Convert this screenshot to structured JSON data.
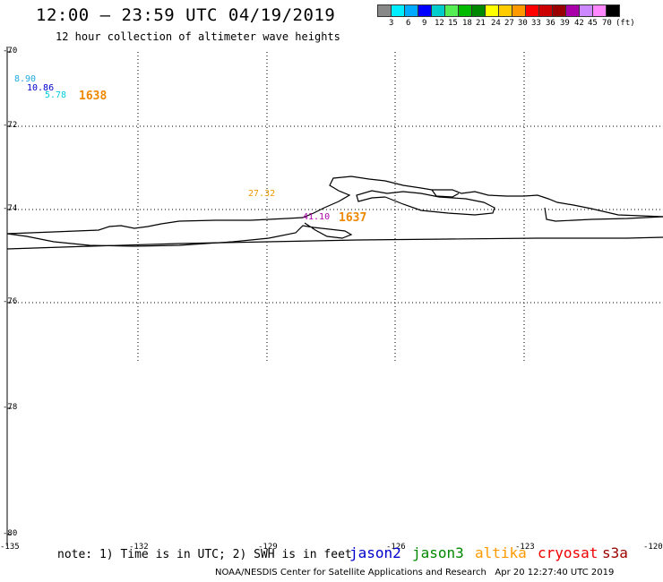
{
  "header": {
    "title": "12:00 – 23:59 UTC 04/19/2019",
    "subtitle": "12 hour collection of altimeter wave heights"
  },
  "legend": {
    "unit": "(ft)",
    "colors": [
      "#888888",
      "#00eeff",
      "#00aaff",
      "#0000ff",
      "#00cccc",
      "#55ee55",
      "#00bb00",
      "#008800",
      "#ffff00",
      "#ffcc00",
      "#ff9900",
      "#ff0000",
      "#cc0000",
      "#990000",
      "#aa00aa",
      "#cc88ff",
      "#ff88ff",
      "#000000"
    ],
    "labels": [
      "3",
      "6",
      "9",
      "12",
      "15",
      "18",
      "21",
      "24",
      "27",
      "30",
      "33",
      "36",
      "39",
      "42",
      "45",
      "70"
    ]
  },
  "axes": {
    "lat_labels": [
      "-70",
      "-72",
      "-74",
      "-76",
      "-78",
      "-80"
    ],
    "lon_labels": [
      "-135",
      "-132",
      "-129",
      "-126",
      "-123",
      "-120"
    ]
  },
  "observations": [
    {
      "value": "8.90",
      "color": "#22aadd"
    },
    {
      "value": "10.86",
      "color": "#0000cc"
    },
    {
      "value": "5.78",
      "color": "#00ccdd"
    },
    {
      "value": "27.32",
      "color": "#ee9900"
    },
    {
      "value": "41.10",
      "color": "#aa00aa"
    }
  ],
  "passes": [
    {
      "label": "1638"
    },
    {
      "label": "1637"
    }
  ],
  "footer": {
    "note": "note: 1) Time is in UTC; 2) SWH is in feet",
    "missions": [
      {
        "name": "jason2",
        "color": "#0000cc"
      },
      {
        "name": "jason3",
        "color": "#008800"
      },
      {
        "name": "altika",
        "color": "#ff9900"
      },
      {
        "name": "cryosat",
        "color": "#ee0000"
      },
      {
        "name": "s3a",
        "color": "#990000"
      }
    ],
    "credit": "NOAA/NESDIS Center for Satellite Applications and Research",
    "timestamp": "Apr 20 12:27:40 UTC 2019"
  }
}
